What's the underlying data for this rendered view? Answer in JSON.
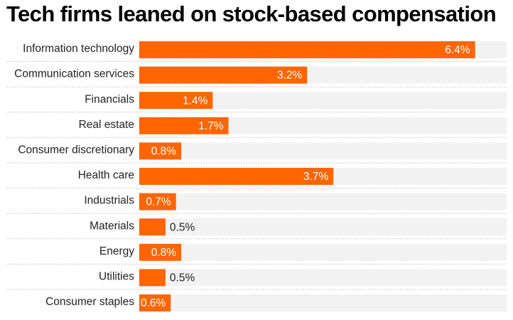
{
  "chart_data": {
    "type": "bar",
    "orientation": "horizontal",
    "title": "Tech firms leaned on stock-based compensation",
    "categories": [
      "Information technology",
      "Communication services",
      "Financials",
      "Real estate",
      "Consumer discretionary",
      "Health care",
      "Industrials",
      "Materials",
      "Energy",
      "Utilities",
      "Consumer staples"
    ],
    "values": [
      6.4,
      3.2,
      1.4,
      1.7,
      0.8,
      3.7,
      0.7,
      0.5,
      0.8,
      0.5,
      0.6
    ],
    "value_labels": [
      "6.4%",
      "3.2%",
      "1.4%",
      "1.7%",
      "0.8%",
      "3.7%",
      "0.7%",
      "0.5%",
      "0.8%",
      "0.5%",
      "0.6%"
    ],
    "xlim": [
      0,
      7
    ],
    "xlabel": "",
    "ylabel": "",
    "grid": false,
    "legend": "none",
    "colors": {
      "bar": "#ff6600",
      "track": "#f2f2f2",
      "separator": "#bdbdbd",
      "label_inside": "#ffffff",
      "label_outside": "#222222"
    }
  }
}
